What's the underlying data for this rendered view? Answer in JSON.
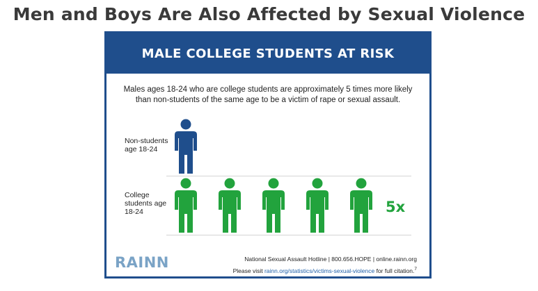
{
  "page": {
    "title": "Men and Boys Are Also Affected by Sexual Violence"
  },
  "infographic": {
    "banner_title": "MALE COLLEGE STUDENTS AT RISK",
    "intro_text": "Males ages 18-24 who are college students are approximately 5 times more likely than non-students of the same age to be a victim of rape or sexual assault.",
    "non_students_label": "Non-students age 18-24",
    "college_students_label": "College students age 18-24",
    "non_students_figure_count": 1,
    "college_students_figure_count": 5,
    "multiplier": "5x",
    "logo": "RAINN",
    "hotline_text": "National Sexual Assault Hotline | 800.656.HOPE | online.rainn.org",
    "citation_prefix": "Please visit ",
    "citation_link": "rainn.org/statistics/victims-sexual-violence",
    "citation_suffix": " for full citation.",
    "citation_number": "7"
  },
  "colors": {
    "banner": "#1f4e8c",
    "non_student_figure": "#1f4e8c",
    "college_figure": "#22a33d",
    "multiplier": "#22a33d",
    "logo": "#7aa3c6",
    "link": "#1f5fa8"
  },
  "icons": {
    "person": "person-icon"
  }
}
